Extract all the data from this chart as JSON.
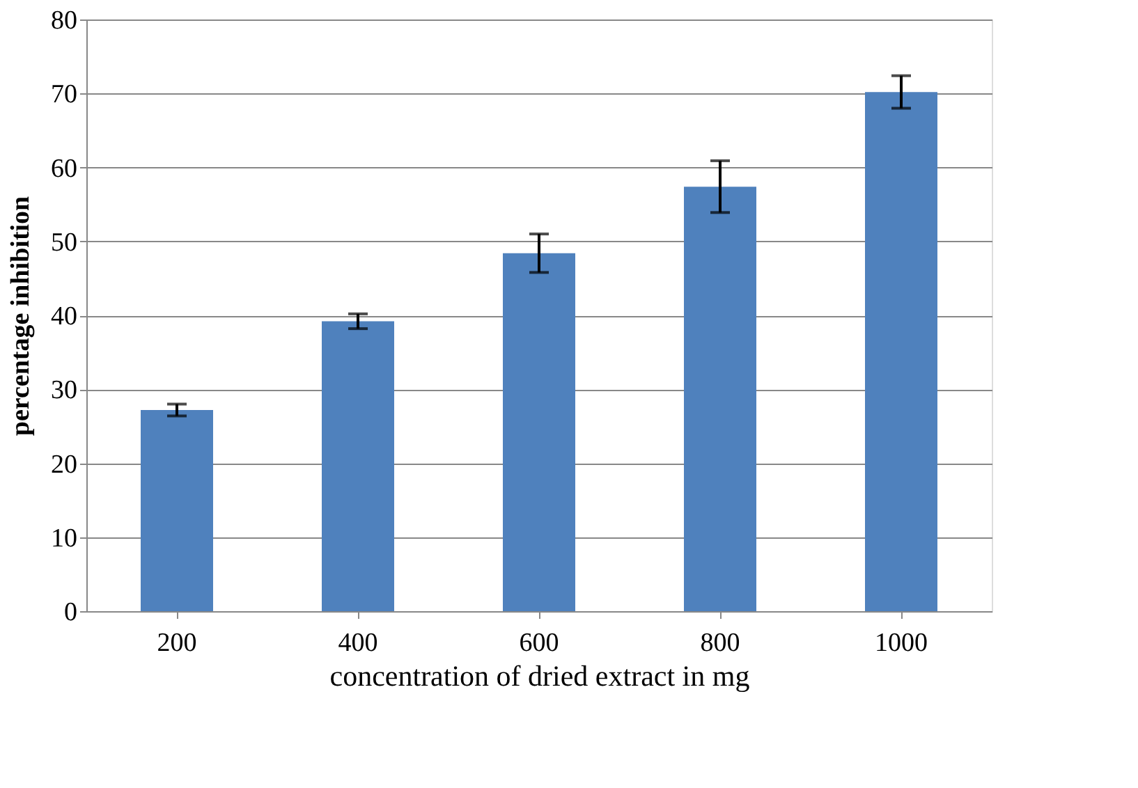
{
  "chart_data": {
    "type": "bar",
    "xlabel": "concentration of dried extract in mg",
    "ylabel": "percentage inhibition",
    "categories": [
      "200",
      "400",
      "600",
      "800",
      "1000"
    ],
    "values": [
      27.2,
      39.2,
      48.4,
      57.4,
      70.2
    ],
    "errors": [
      0.8,
      1.0,
      2.6,
      3.5,
      2.2
    ],
    "color": "#4f81bd",
    "ylim": [
      0,
      80
    ],
    "yticks": [
      0,
      10,
      20,
      30,
      40,
      50,
      60,
      70,
      80
    ],
    "grid": "y"
  }
}
